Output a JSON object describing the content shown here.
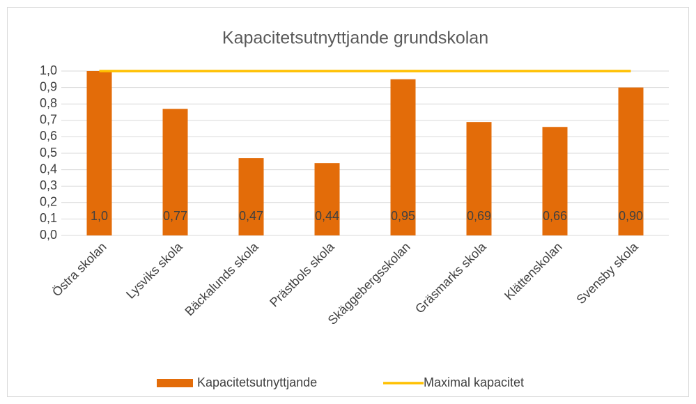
{
  "chart_data": {
    "type": "bar",
    "title": "Kapacitetsutnyttjande grundskolan",
    "categories": [
      "Östra skolan",
      "Lysviks skola",
      "Bäckalunds skola",
      "Prästbols skola",
      "Skäggebergsskolan",
      "Gräsmarks skola",
      "Klättenskolan",
      "Svensby skola"
    ],
    "series": [
      {
        "name": "Kapacitetsutnyttjande",
        "type": "bar",
        "color": "#e36c09",
        "values": [
          1.0,
          0.77,
          0.47,
          0.44,
          0.95,
          0.69,
          0.66,
          0.9
        ],
        "value_labels": [
          "1,0",
          "0,77",
          "0,47",
          "0,44",
          "0,95",
          "0,69",
          "0,66",
          "0,90"
        ]
      },
      {
        "name": "Maximal kapacitet",
        "type": "line",
        "color": "#ffc000",
        "values": [
          1,
          1,
          1,
          1,
          1,
          1,
          1,
          1
        ]
      }
    ],
    "ylim": [
      0,
      1
    ],
    "yticks": [
      {
        "value": 0,
        "label": "0,0"
      },
      {
        "value": 0.1,
        "label": "0,1"
      },
      {
        "value": 0.2,
        "label": "0,2"
      },
      {
        "value": 0.3,
        "label": "0,3"
      },
      {
        "value": 0.4,
        "label": "0,4"
      },
      {
        "value": 0.5,
        "label": "0,5"
      },
      {
        "value": 0.6,
        "label": "0,6"
      },
      {
        "value": 0.7,
        "label": "0,7"
      },
      {
        "value": 0.8,
        "label": "0,8"
      },
      {
        "value": 0.9,
        "label": "0,9"
      },
      {
        "value": 1,
        "label": "1,0"
      }
    ],
    "grid": true,
    "legend": "bottom"
  }
}
